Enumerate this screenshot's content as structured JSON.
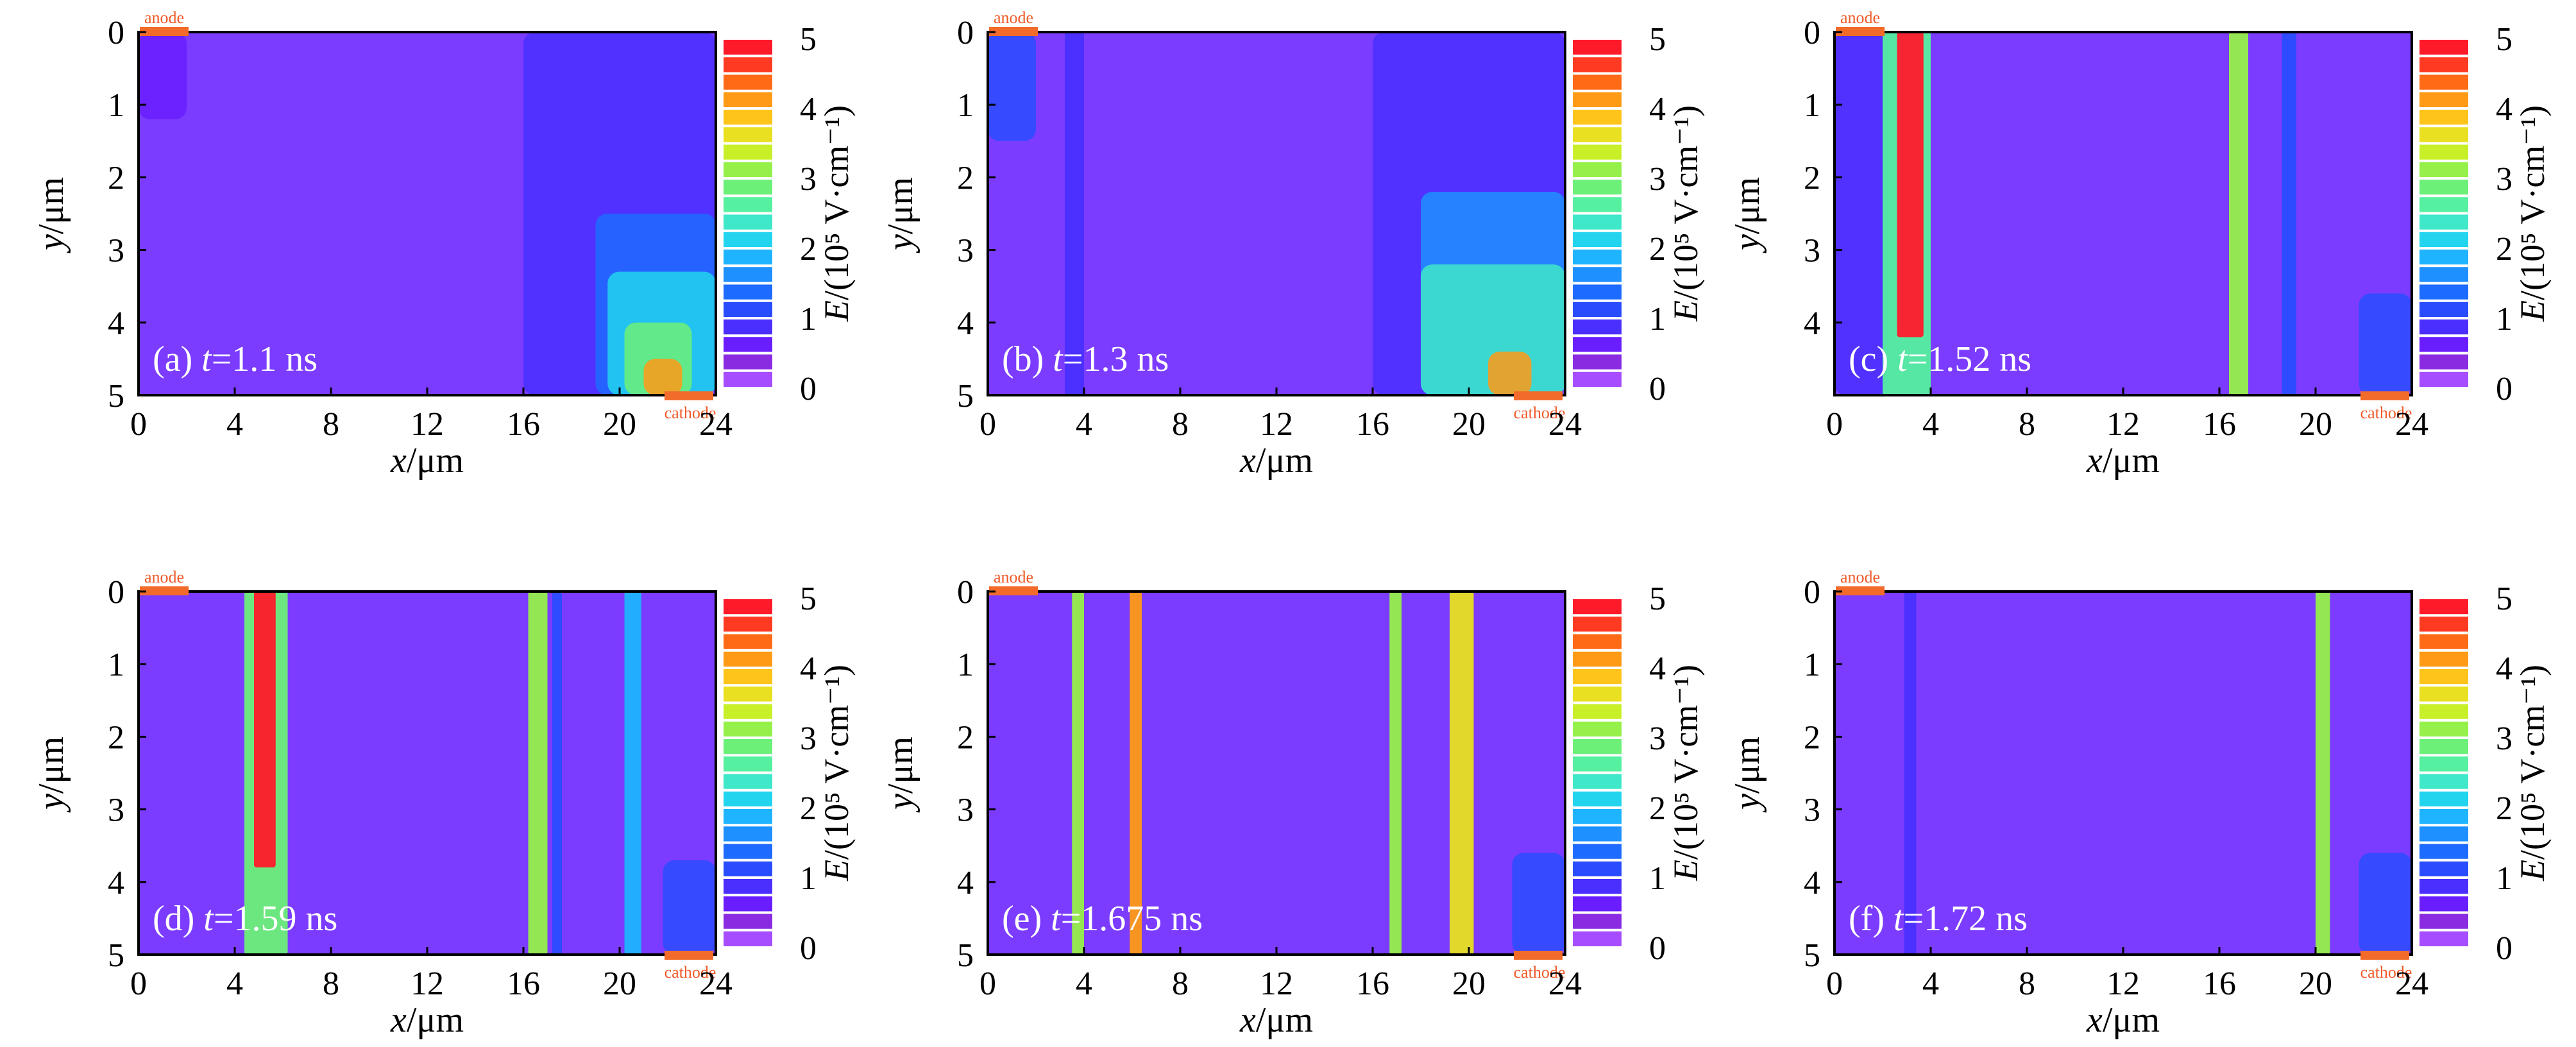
{
  "colors": {
    "background": "#7b3cff",
    "electrode": "#f26b2a",
    "colormap": [
      "#a64dff",
      "#8a2be2",
      "#6a1dff",
      "#4a2fff",
      "#2a4cff",
      "#1e6bff",
      "#1e90ff",
      "#1eb4ff",
      "#22d4ee",
      "#3fe8c9",
      "#55f0a0",
      "#6cf078",
      "#96f04a",
      "#c8f028",
      "#e8e020",
      "#ffc419",
      "#ff9a16",
      "#ff6a16",
      "#ff3a22",
      "#ff1a2a"
    ]
  },
  "chart_data": [
    {
      "type": "heatmap",
      "panel_label": "(a) ",
      "time_label": "t",
      "time_value": "=1.1 ns",
      "xlabel": "x",
      "xlabel_unit": "/μm",
      "ylabel": "y",
      "ylabel_unit": "/μm",
      "x_ticks": [
        "0",
        "4",
        "8",
        "12",
        "16",
        "20",
        "24"
      ],
      "y_ticks": [
        "0",
        "1",
        "2",
        "3",
        "4",
        "5"
      ],
      "xlim": [
        0,
        24
      ],
      "ylim": [
        5,
        0
      ],
      "colorbar": {
        "label": "E/(10⁵ V·cm⁻¹)",
        "ticks": [
          "0",
          "1",
          "2",
          "3",
          "4",
          "5"
        ],
        "range": [
          0,
          5
        ]
      },
      "electrodes": {
        "anode": "anode",
        "cathode": "cathode"
      },
      "features": [
        {
          "kind": "bulk",
          "x": [
            16,
            24
          ],
          "y": [
            0,
            5
          ],
          "value": 0.8
        },
        {
          "kind": "bulk",
          "x": [
            19,
            24
          ],
          "y": [
            2.5,
            5
          ],
          "value": 1.3
        },
        {
          "kind": "bulk",
          "x": [
            19.5,
            24
          ],
          "y": [
            3.3,
            5
          ],
          "value": 2.0
        },
        {
          "kind": "bulk",
          "x": [
            20.2,
            23
          ],
          "y": [
            4.0,
            5
          ],
          "value": 2.9
        },
        {
          "kind": "bulk",
          "x": [
            21,
            22.6
          ],
          "y": [
            4.5,
            5
          ],
          "value": 4.2
        },
        {
          "kind": "bulk",
          "x": [
            0,
            2
          ],
          "y": [
            0,
            1.2
          ],
          "value": 0.6
        }
      ]
    },
    {
      "type": "heatmap",
      "panel_label": "(b) ",
      "time_label": "t",
      "time_value": "=1.3 ns",
      "xlabel": "x",
      "xlabel_unit": "/μm",
      "ylabel": "y",
      "ylabel_unit": "/μm",
      "x_ticks": [
        "0",
        "4",
        "8",
        "12",
        "16",
        "20",
        "24"
      ],
      "y_ticks": [
        "0",
        "1",
        "2",
        "3",
        "4",
        "5"
      ],
      "xlim": [
        0,
        24
      ],
      "ylim": [
        5,
        0
      ],
      "colorbar": {
        "label": "E/(10⁵ V·cm⁻¹)",
        "ticks": [
          "0",
          "1",
          "2",
          "3",
          "4",
          "5"
        ],
        "range": [
          0,
          5
        ]
      },
      "electrodes": {
        "anode": "anode",
        "cathode": "cathode"
      },
      "features": [
        {
          "kind": "bulk",
          "x": [
            16,
            24
          ],
          "y": [
            0,
            5
          ],
          "value": 0.8
        },
        {
          "kind": "bulk",
          "x": [
            18,
            24
          ],
          "y": [
            2.2,
            5
          ],
          "value": 1.5
        },
        {
          "kind": "bulk",
          "x": [
            18,
            24
          ],
          "y": [
            3.2,
            5
          ],
          "value": 2.3
        },
        {
          "kind": "bulk",
          "x": [
            20.8,
            22.6
          ],
          "y": [
            4.4,
            5
          ],
          "value": 4.0
        },
        {
          "kind": "stripe",
          "x": [
            3.2,
            4.0
          ],
          "y": [
            0,
            5
          ],
          "value": 0.8
        },
        {
          "kind": "bulk",
          "x": [
            0,
            2
          ],
          "y": [
            0,
            1.5
          ],
          "value": 1.0
        }
      ]
    },
    {
      "type": "heatmap",
      "panel_label": "(c) ",
      "time_label": "t",
      "time_value": "=1.52 ns",
      "xlabel": "x",
      "xlabel_unit": "/μm",
      "ylabel": "y",
      "ylabel_unit": "/μm",
      "x_ticks": [
        "0",
        "4",
        "8",
        "12",
        "16",
        "20",
        "24"
      ],
      "y_ticks": [
        "0",
        "1",
        "2",
        "3",
        "4"
      ],
      "xlim": [
        0,
        24
      ],
      "ylim": [
        5,
        0
      ],
      "colorbar": {
        "label": "E/(10⁵ V·cm⁻¹)",
        "ticks": [
          "0",
          "1",
          "2",
          "3",
          "4",
          "5"
        ],
        "range": [
          0,
          5
        ]
      },
      "electrodes": {
        "anode": "anode",
        "cathode": "cathode"
      },
      "features": [
        {
          "kind": "bulk",
          "x": [
            0,
            2.3
          ],
          "y": [
            0,
            5
          ],
          "value": 0.8
        },
        {
          "kind": "stripe",
          "x": [
            2.0,
            4.0
          ],
          "y": [
            0,
            5
          ],
          "value": 2.5
        },
        {
          "kind": "stripe",
          "x": [
            2.6,
            3.7
          ],
          "y": [
            0,
            4.2
          ],
          "value": 4.8
        },
        {
          "kind": "stripe",
          "x": [
            16.4,
            17.2
          ],
          "y": [
            0,
            5
          ],
          "value": 3.0
        },
        {
          "kind": "stripe",
          "x": [
            18.6,
            19.2
          ],
          "y": [
            0,
            5
          ],
          "value": 1.0
        },
        {
          "kind": "bulk",
          "x": [
            21.8,
            24
          ],
          "y": [
            3.6,
            5
          ],
          "value": 1.0
        }
      ]
    },
    {
      "type": "heatmap",
      "panel_label": "(d) ",
      "time_label": "t",
      "time_value": "=1.59 ns",
      "xlabel": "x",
      "xlabel_unit": "/μm",
      "ylabel": "y",
      "ylabel_unit": "/μm",
      "x_ticks": [
        "0",
        "4",
        "8",
        "12",
        "16",
        "20",
        "24"
      ],
      "y_ticks": [
        "0",
        "1",
        "2",
        "3",
        "4",
        "5"
      ],
      "xlim": [
        0,
        24
      ],
      "ylim": [
        5,
        0
      ],
      "colorbar": {
        "label": "E/(10⁵ V·cm⁻¹)",
        "ticks": [
          "0",
          "1",
          "2",
          "3",
          "4",
          "5"
        ],
        "range": [
          0,
          5
        ]
      },
      "electrodes": {
        "anode": "anode",
        "cathode": "cathode"
      },
      "features": [
        {
          "kind": "stripe",
          "x": [
            4.4,
            6.2
          ],
          "y": [
            0,
            5
          ],
          "value": 2.8
        },
        {
          "kind": "stripe",
          "x": [
            4.8,
            5.7
          ],
          "y": [
            0,
            3.8
          ],
          "value": 4.8
        },
        {
          "kind": "stripe",
          "x": [
            16.2,
            17.0
          ],
          "y": [
            0,
            5
          ],
          "value": 3.0
        },
        {
          "kind": "stripe",
          "x": [
            17.2,
            17.6
          ],
          "y": [
            0,
            5
          ],
          "value": 1.0
        },
        {
          "kind": "stripe",
          "x": [
            20.2,
            20.9
          ],
          "y": [
            0,
            5
          ],
          "value": 1.8
        },
        {
          "kind": "bulk",
          "x": [
            21.8,
            24
          ],
          "y": [
            3.7,
            5
          ],
          "value": 1.2
        }
      ]
    },
    {
      "type": "heatmap",
      "panel_label": "(e) ",
      "time_label": "t",
      "time_value": "=1.675 ns",
      "xlabel": "x",
      "xlabel_unit": "/μm",
      "ylabel": "y",
      "ylabel_unit": "/μm",
      "x_ticks": [
        "0",
        "4",
        "8",
        "12",
        "16",
        "20",
        "24"
      ],
      "y_ticks": [
        "0",
        "1",
        "2",
        "3",
        "4",
        "5"
      ],
      "xlim": [
        0,
        24
      ],
      "ylim": [
        5,
        0
      ],
      "colorbar": {
        "label": "E/(10⁵ V·cm⁻¹)",
        "ticks": [
          "0",
          "1",
          "2",
          "3",
          "4",
          "5"
        ],
        "range": [
          0,
          5
        ]
      },
      "electrodes": {
        "anode": "anode",
        "cathode": "cathode"
      },
      "features": [
        {
          "kind": "stripe",
          "x": [
            3.5,
            4.0
          ],
          "y": [
            0,
            5
          ],
          "value": 3.0
        },
        {
          "kind": "stripe",
          "x": [
            5.9,
            6.4
          ],
          "y": [
            0,
            5
          ],
          "value": 4.0
        },
        {
          "kind": "stripe",
          "x": [
            16.7,
            17.2
          ],
          "y": [
            0,
            5
          ],
          "value": 3.2
        },
        {
          "kind": "stripe",
          "x": [
            19.2,
            20.2
          ],
          "y": [
            0,
            5
          ],
          "value": 3.5
        },
        {
          "kind": "bulk",
          "x": [
            21.8,
            24
          ],
          "y": [
            3.6,
            5
          ],
          "value": 1.2
        }
      ]
    },
    {
      "type": "heatmap",
      "panel_label": "(f) ",
      "time_label": "t",
      "time_value": "=1.72 ns",
      "xlabel": "x",
      "xlabel_unit": "/μm",
      "ylabel": "y",
      "ylabel_unit": "/μm",
      "x_ticks": [
        "0",
        "4",
        "8",
        "12",
        "16",
        "20",
        "24"
      ],
      "y_ticks": [
        "0",
        "1",
        "2",
        "3",
        "4",
        "5"
      ],
      "xlim": [
        0,
        24
      ],
      "ylim": [
        5,
        0
      ],
      "colorbar": {
        "label": "E/(10⁵ V·cm⁻¹)",
        "ticks": [
          "0",
          "1",
          "2",
          "3",
          "4",
          "5"
        ],
        "range": [
          0,
          5
        ]
      },
      "electrodes": {
        "anode": "anode",
        "cathode": "cathode"
      },
      "features": [
        {
          "kind": "stripe",
          "x": [
            2.9,
            3.4
          ],
          "y": [
            0,
            5
          ],
          "value": 0.9
        },
        {
          "kind": "stripe",
          "x": [
            20.0,
            20.6
          ],
          "y": [
            0,
            5
          ],
          "value": 3.0
        },
        {
          "kind": "bulk",
          "x": [
            21.8,
            24
          ],
          "y": [
            3.6,
            5
          ],
          "value": 1.0
        }
      ]
    }
  ]
}
